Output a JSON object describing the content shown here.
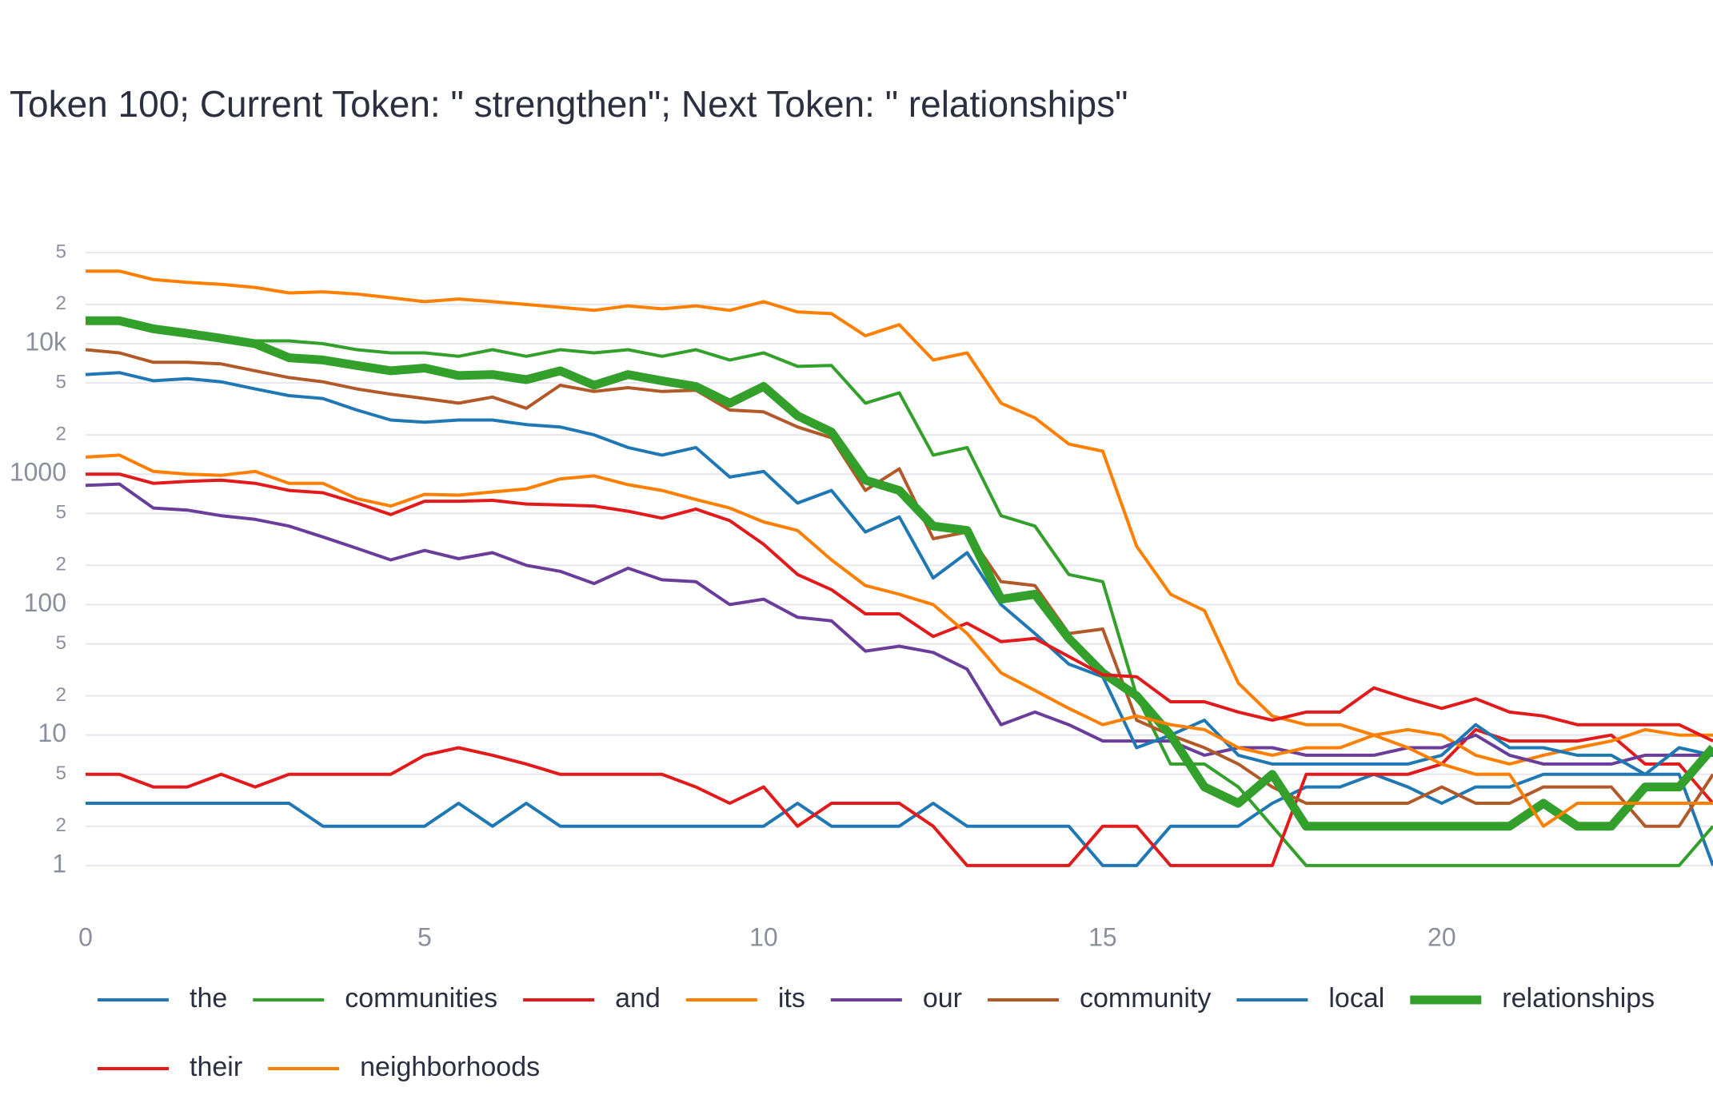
{
  "chart_data": {
    "type": "line",
    "title": "Token 100; Current Token: \" strengthen\"; Next Token: \" relationships\"",
    "log_y": true,
    "grid": true,
    "x": [
      0,
      0.5,
      1,
      1.5,
      2,
      2.5,
      3,
      3.5,
      4,
      4.5,
      5,
      5.5,
      6,
      6.5,
      7,
      7.5,
      8,
      8.5,
      9,
      9.5,
      10,
      10.5,
      11,
      11.5,
      12,
      12.5,
      13,
      13.5,
      14,
      14.5,
      15,
      15.5,
      16,
      16.5,
      17,
      17.5,
      18,
      18.5,
      19,
      19.5,
      20,
      20.5,
      21,
      21.5,
      22,
      22.5,
      23,
      23.5,
      24
    ],
    "xlim": [
      0,
      24
    ],
    "xticks": [
      0,
      5,
      10,
      15,
      20
    ],
    "ylim": [
      0.5,
      60000
    ],
    "yticks": [
      1,
      2,
      5,
      10,
      {
        "value": 20,
        "label": "2"
      },
      {
        "value": 50,
        "label": "5"
      },
      100,
      {
        "value": 200,
        "label": "2"
      },
      {
        "value": 500,
        "label": "5"
      },
      1000,
      {
        "value": 2000,
        "label": "2"
      },
      {
        "value": 5000,
        "label": "5"
      },
      {
        "value": 10000,
        "label": "10k"
      },
      {
        "value": 20000,
        "label": "2"
      },
      {
        "value": 50000,
        "label": "5"
      }
    ],
    "series": [
      {
        "name": "the",
        "color": "#1f78b4",
        "width": 4,
        "values": [
          3,
          3,
          3,
          3,
          3,
          3,
          3,
          2,
          2,
          2,
          2,
          3,
          2,
          3,
          2,
          2,
          2,
          2,
          2,
          2,
          2,
          3,
          2,
          2,
          2,
          3,
          2,
          2,
          2,
          2,
          1,
          1,
          2,
          2,
          2,
          3,
          4,
          4,
          5,
          4,
          3,
          4,
          4,
          5,
          5,
          5,
          5,
          5,
          1
        ]
      },
      {
        "name": "communities",
        "color": "#33a02c",
        "width": 4,
        "values": [
          15000,
          15000,
          13000,
          12500,
          11000,
          10500,
          10500,
          10000,
          9000,
          8500,
          8500,
          8000,
          9000,
          8000,
          9000,
          8500,
          9000,
          8000,
          9000,
          7500,
          8500,
          6700,
          6800,
          3500,
          4200,
          1400,
          1600,
          480,
          400,
          170,
          150,
          20,
          6,
          6,
          4,
          2,
          1,
          1,
          1,
          1,
          1,
          1,
          1,
          1,
          1,
          1,
          1,
          1,
          2
        ]
      },
      {
        "name": "and",
        "color": "#e31a1c",
        "width": 4,
        "values": [
          5,
          5,
          4,
          4,
          5,
          4,
          5,
          5,
          5,
          5,
          7,
          8,
          7,
          6,
          5,
          5,
          5,
          5,
          4,
          3,
          4,
          2,
          3,
          3,
          3,
          2,
          1,
          1,
          1,
          1,
          2,
          2,
          1,
          1,
          1,
          1,
          5,
          5,
          5,
          5,
          6,
          11,
          9,
          9,
          9,
          10,
          6,
          6,
          3
        ]
      },
      {
        "name": "its",
        "color": "#ff7f00",
        "width": 4,
        "values": [
          36000,
          36000,
          31000,
          29500,
          28500,
          27000,
          24500,
          25000,
          24000,
          22500,
          21000,
          22000,
          21000,
          20000,
          19000,
          18000,
          19500,
          18500,
          19500,
          18000,
          21000,
          17500,
          17000,
          11500,
          14000,
          7500,
          8500,
          3500,
          2700,
          1700,
          1500,
          280,
          120,
          90,
          25,
          14,
          12,
          12,
          10,
          11,
          10,
          7,
          6,
          7,
          8,
          9,
          11,
          10,
          10
        ]
      },
      {
        "name": "our",
        "color": "#6a3d9a",
        "width": 4,
        "values": [
          820,
          840,
          550,
          530,
          480,
          450,
          400,
          330,
          270,
          220,
          260,
          225,
          250,
          200,
          180,
          145,
          190,
          155,
          150,
          100,
          110,
          80,
          75,
          44,
          48,
          43,
          32,
          12,
          15,
          12,
          9,
          9,
          9,
          7,
          8,
          8,
          7,
          7,
          7,
          8,
          8,
          10,
          7,
          6,
          6,
          6,
          7,
          7,
          7
        ]
      },
      {
        "name": "community",
        "color": "#b15928",
        "width": 4,
        "values": [
          9000,
          8500,
          7200,
          7200,
          7000,
          6200,
          5500,
          5100,
          4500,
          4100,
          3800,
          3500,
          3900,
          3200,
          4800,
          4300,
          4600,
          4300,
          4400,
          3100,
          3000,
          2300,
          1900,
          750,
          1100,
          320,
          360,
          150,
          140,
          60,
          65,
          13,
          10,
          8,
          6,
          4,
          3,
          3,
          3,
          3,
          4,
          3,
          3,
          4,
          4,
          4,
          2,
          2,
          5
        ]
      },
      {
        "name": "local",
        "color": "#1f78b4",
        "width": 4,
        "values": [
          5800,
          6000,
          5200,
          5400,
          5100,
          4500,
          4000,
          3800,
          3100,
          2600,
          2500,
          2600,
          2600,
          2400,
          2300,
          2000,
          1600,
          1400,
          1600,
          950,
          1050,
          600,
          750,
          360,
          470,
          160,
          250,
          100,
          60,
          35,
          28,
          8,
          10,
          13,
          7,
          6,
          6,
          6,
          6,
          6,
          7,
          12,
          8,
          8,
          7,
          7,
          5,
          8,
          7
        ]
      },
      {
        "name": "relationships",
        "color": "#33a02c",
        "width": 11,
        "values": [
          15000,
          15000,
          13000,
          12000,
          11000,
          10000,
          7800,
          7500,
          6800,
          6200,
          6500,
          5700,
          5800,
          5300,
          6200,
          4800,
          5800,
          5200,
          4700,
          3500,
          4700,
          2800,
          2100,
          900,
          750,
          400,
          370,
          110,
          120,
          55,
          30,
          20,
          10,
          4,
          3,
          5,
          2,
          2,
          2,
          2,
          2,
          2,
          2,
          3,
          2,
          2,
          4,
          4,
          8
        ]
      },
      {
        "name": "their",
        "color": "#e31a1c",
        "width": 4,
        "values": [
          1000,
          1000,
          850,
          880,
          900,
          850,
          750,
          720,
          600,
          490,
          620,
          620,
          630,
          590,
          580,
          570,
          520,
          460,
          540,
          440,
          290,
          170,
          130,
          85,
          85,
          57,
          72,
          52,
          55,
          40,
          29,
          28,
          18,
          18,
          15,
          13,
          15,
          15,
          23,
          19,
          16,
          19,
          15,
          14,
          12,
          12,
          12,
          12,
          9
        ]
      },
      {
        "name": "neighborhoods",
        "color": "#ff7f00",
        "width": 4,
        "values": [
          1350,
          1400,
          1050,
          1000,
          980,
          1050,
          850,
          850,
          650,
          570,
          700,
          690,
          730,
          770,
          920,
          970,
          830,
          750,
          640,
          550,
          430,
          370,
          220,
          140,
          120,
          100,
          60,
          30,
          22,
          16,
          12,
          14,
          12,
          11,
          8,
          7,
          8,
          8,
          10,
          8,
          6,
          5,
          5,
          2,
          3,
          3,
          3,
          3,
          3
        ]
      }
    ]
  }
}
